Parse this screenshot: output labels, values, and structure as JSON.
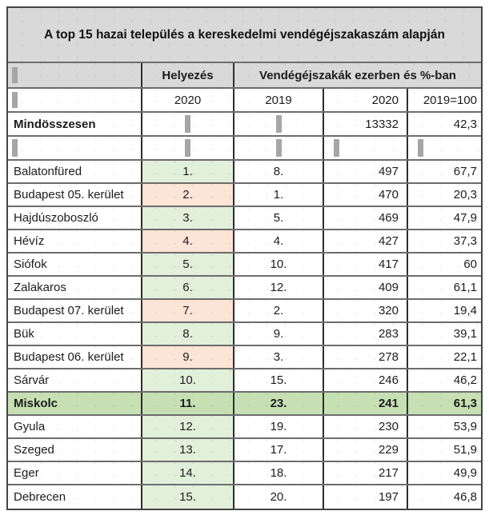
{
  "chart_data": {
    "type": "table",
    "title": "A top 15 hazai település a kereskedelmi vendégéjszakaszám alapján",
    "column_group_headers": {
      "rank": "Helyezés",
      "nights": "Vendégéjszakák ezerben és %-ban"
    },
    "column_headers": {
      "rank_2020": "2020",
      "rank_2019": "2019",
      "nights_2020": "2020",
      "index_2019_100": "2019=100"
    },
    "total_row": {
      "name": "Mindösszesen",
      "nights_2020": "13332",
      "index": "42,3"
    },
    "rows": [
      {
        "name": "Balatonfüred",
        "rank_2020": "1.",
        "rank_2019": "8.",
        "nights_2020": "497",
        "index": "67,7",
        "fill": "green"
      },
      {
        "name": "Budapest 05. kerület",
        "rank_2020": "2.",
        "rank_2019": "1.",
        "nights_2020": "470",
        "index": "20,3",
        "fill": "peach"
      },
      {
        "name": "Hajdúszoboszló",
        "rank_2020": "3.",
        "rank_2019": "5.",
        "nights_2020": "469",
        "index": "47,9",
        "fill": "green"
      },
      {
        "name": "Hévíz",
        "rank_2020": "4.",
        "rank_2019": "4.",
        "nights_2020": "427",
        "index": "37,3",
        "fill": "peach"
      },
      {
        "name": "Siófok",
        "rank_2020": "5.",
        "rank_2019": "10.",
        "nights_2020": "417",
        "index": "60",
        "fill": "green"
      },
      {
        "name": "Zalakaros",
        "rank_2020": "6.",
        "rank_2019": "12.",
        "nights_2020": "409",
        "index": "61,1",
        "fill": "green"
      },
      {
        "name": "Budapest 07. kerület",
        "rank_2020": "7.",
        "rank_2019": "2.",
        "nights_2020": "320",
        "index": "19,4",
        "fill": "peach"
      },
      {
        "name": "Bük",
        "rank_2020": "8.",
        "rank_2019": "9.",
        "nights_2020": "283",
        "index": "39,1",
        "fill": "green"
      },
      {
        "name": "Budapest 06. kerület",
        "rank_2020": "9.",
        "rank_2019": "3.",
        "nights_2020": "278",
        "index": "22,1",
        "fill": "peach"
      },
      {
        "name": "Sárvár",
        "rank_2020": "10.",
        "rank_2019": "15.",
        "nights_2020": "246",
        "index": "46,2",
        "fill": "green"
      },
      {
        "name": "Miskolc",
        "rank_2020": "11.",
        "rank_2019": "23.",
        "nights_2020": "241",
        "index": "61,3",
        "fill": "green",
        "highlight": "highlight"
      },
      {
        "name": "Gyula",
        "rank_2020": "12.",
        "rank_2019": "19.",
        "nights_2020": "230",
        "index": "53,9",
        "fill": "green"
      },
      {
        "name": "Szeged",
        "rank_2020": "13.",
        "rank_2019": "17.",
        "nights_2020": "229",
        "index": "51,9",
        "fill": "green"
      },
      {
        "name": "Eger",
        "rank_2020": "14.",
        "rank_2019": "18.",
        "nights_2020": "217",
        "index": "49,9",
        "fill": "green"
      },
      {
        "name": "Debrecen",
        "rank_2020": "15.",
        "rank_2019": "20.",
        "nights_2020": "197",
        "index": "46,8",
        "fill": "green"
      }
    ]
  },
  "colors": {
    "header_fill": "#d9d9d9",
    "green_fill": "#e2efda",
    "peach_fill": "#fce4d6",
    "highlight_fill": "#c6e0b4",
    "bar_gray": "#a6a6a6"
  }
}
